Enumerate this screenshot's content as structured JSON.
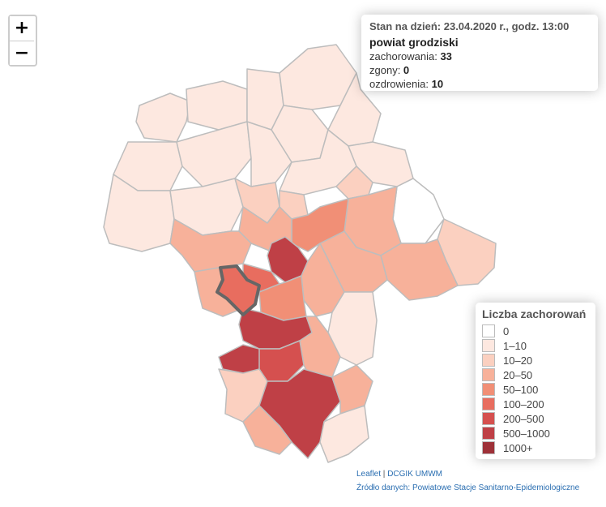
{
  "zoom": {
    "in_label": "+",
    "out_label": "−"
  },
  "info": {
    "date_label": "Stan na dzień: 23.04.2020 r., godz. 13:00",
    "county": "powiat grodziski",
    "cases_label": "zachorowania: ",
    "cases": "33",
    "deaths_label": "zgony: ",
    "deaths": "0",
    "recovered_label": "ozdrowienia: ",
    "recovered": "10"
  },
  "legend": {
    "title": "Liczba zachorowań",
    "items": [
      {
        "label": "0",
        "color": "#ffffff"
      },
      {
        "label": "1–10",
        "color": "#fde8e0"
      },
      {
        "label": "10–20",
        "color": "#fbd0c0"
      },
      {
        "label": "20–50",
        "color": "#f7b19a"
      },
      {
        "label": "50–100",
        "color": "#f18f76"
      },
      {
        "label": "100–200",
        "color": "#e86d5f"
      },
      {
        "label": "200–500",
        "color": "#d5504f"
      },
      {
        "label": "500–1000",
        "color": "#bf4046"
      },
      {
        "label": "1000+",
        "color": "#9e3138"
      }
    ]
  },
  "attribution": {
    "leaflet": "Leaflet",
    "separator": " | ",
    "provider": "DCGIK UMWM",
    "source_label": "Źródło danych: ",
    "source": "Powiatowe Stacje Sanitarno-Epidemiologiczne"
  }
}
